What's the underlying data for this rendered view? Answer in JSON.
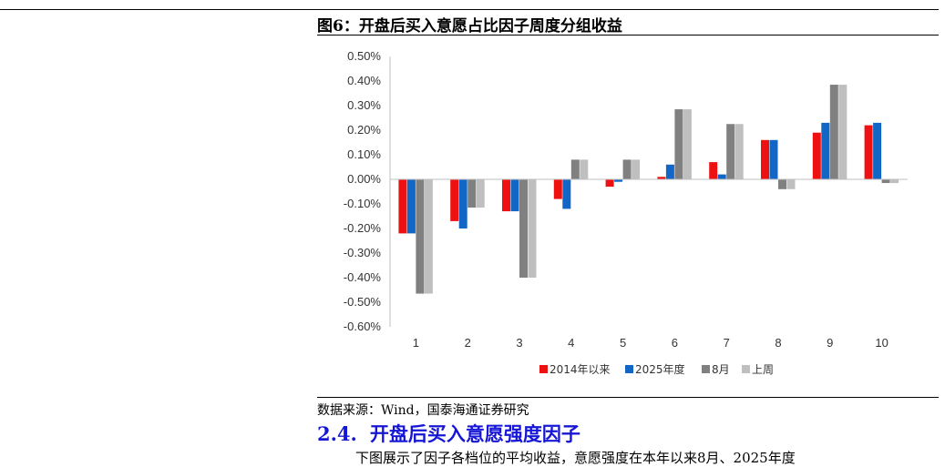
{
  "figure": {
    "title": "图6：开盘后买入意愿占比因子周度分组收益"
  },
  "source": "数据来源：Wind，国泰海通证券研究",
  "section": {
    "number": "2.4.",
    "title": "开盘后买入意愿强度因子"
  },
  "body_fragment": "下图展示了因子各档位的平均收益，意愿强度在本年以来8月、2025年度",
  "colors": {
    "s2014": "#ee1111",
    "s2025": "#1266c6",
    "aug": "#808080",
    "lastweek": "#bfbfbf",
    "heading": "#1616d6"
  },
  "chart_data": {
    "type": "bar",
    "categories": [
      "1",
      "2",
      "3",
      "4",
      "5",
      "6",
      "7",
      "8",
      "9",
      "10"
    ],
    "ylim": [
      -0.6,
      0.5
    ],
    "yticks": [
      "0.50%",
      "0.40%",
      "0.30%",
      "0.20%",
      "0.10%",
      "0.00%",
      "-0.10%",
      "-0.20%",
      "-0.30%",
      "-0.40%",
      "-0.50%",
      "-0.60%"
    ],
    "legend_position": "bottom",
    "grid": false,
    "series": [
      {
        "name": "2014年以来",
        "color": "#ee1111",
        "values": [
          -0.22,
          -0.17,
          -0.13,
          -0.08,
          -0.03,
          0.01,
          0.07,
          0.16,
          0.19,
          0.22
        ]
      },
      {
        "name": "2025年度",
        "color": "#1266c6",
        "values": [
          -0.22,
          -0.2,
          -0.13,
          -0.12,
          -0.01,
          0.06,
          0.02,
          0.16,
          0.23,
          0.23
        ]
      },
      {
        "name": "8月",
        "color": "#808080",
        "values": [
          -0.465,
          -0.115,
          -0.4,
          0.08,
          0.08,
          0.285,
          0.225,
          -0.04,
          0.385,
          -0.015
        ]
      },
      {
        "name": "上周",
        "color": "#bfbfbf",
        "values": [
          -0.465,
          -0.115,
          -0.4,
          0.08,
          0.08,
          0.285,
          0.225,
          -0.04,
          0.385,
          -0.015
        ]
      }
    ]
  }
}
